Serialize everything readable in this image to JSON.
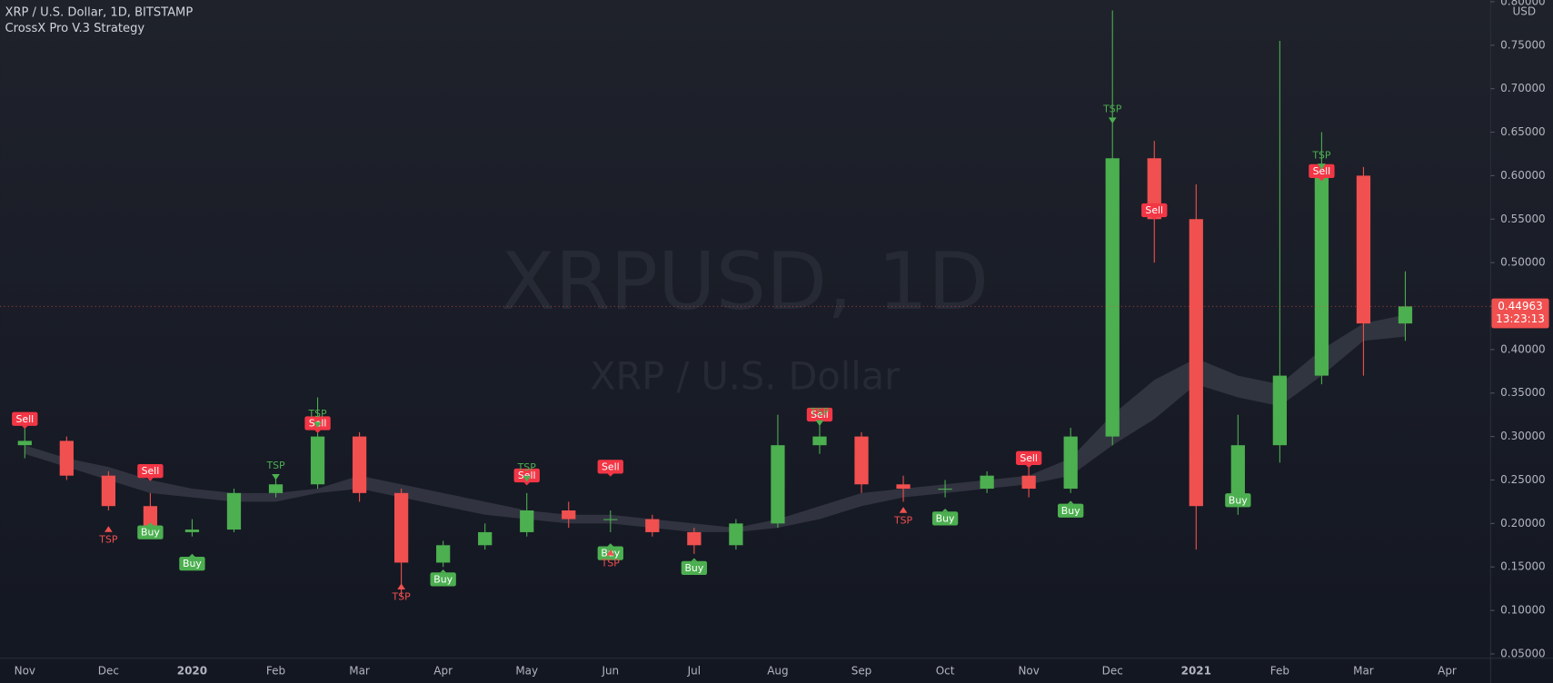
{
  "header": {
    "title": "XRP / U.S. Dollar, 1D, BITSTAMP",
    "indicator": "CrossX Pro V.3 Strategy",
    "watermark_symbol": "XRPUSD, 1D",
    "watermark_name": "XRP / U.S. Dollar",
    "currency": "USD",
    "countdown": "13:23:13"
  },
  "chart_data": {
    "type": "candlestick",
    "categories": [
      "Nov",
      null,
      "Dec",
      null,
      "2020",
      null,
      "Feb",
      null,
      "Mar",
      null,
      "Apr",
      null,
      "May",
      null,
      "Jun",
      null,
      "Jul",
      null,
      "Aug",
      null,
      "Sep",
      null,
      "Oct",
      null,
      "Nov",
      null,
      "Dec",
      null,
      "2021",
      null,
      "Feb",
      null,
      "Mar",
      null,
      "Apr"
    ],
    "open": [
      0.29,
      0.295,
      0.255,
      0.22,
      0.19,
      0.193,
      0.235,
      0.245,
      0.3,
      0.235,
      0.155,
      0.175,
      0.19,
      0.215,
      0.205,
      0.205,
      0.19,
      0.175,
      0.2,
      0.29,
      0.3,
      0.245,
      0.24,
      0.24,
      0.255,
      0.24,
      0.3,
      0.62,
      0.55,
      0.22,
      0.29,
      0.37,
      0.6,
      0.43,
      null
    ],
    "high": [
      0.315,
      0.3,
      0.26,
      0.235,
      0.205,
      0.24,
      0.255,
      0.345,
      0.305,
      0.24,
      0.18,
      0.2,
      0.235,
      0.225,
      0.215,
      0.21,
      0.195,
      0.205,
      0.325,
      0.32,
      0.305,
      0.255,
      0.25,
      0.26,
      0.265,
      0.31,
      0.79,
      0.64,
      0.59,
      0.325,
      0.755,
      0.65,
      0.61,
      0.49,
      null
    ],
    "low": [
      0.275,
      0.25,
      0.215,
      0.185,
      0.185,
      0.19,
      0.23,
      0.24,
      0.225,
      0.115,
      0.15,
      0.17,
      0.185,
      0.195,
      0.19,
      0.185,
      0.165,
      0.17,
      0.195,
      0.28,
      0.235,
      0.225,
      0.23,
      0.235,
      0.23,
      0.235,
      0.29,
      0.5,
      0.17,
      0.21,
      0.27,
      0.36,
      0.37,
      0.41,
      null
    ],
    "close": [
      0.295,
      0.255,
      0.22,
      0.19,
      0.193,
      0.235,
      0.245,
      0.3,
      0.235,
      0.155,
      0.175,
      0.19,
      0.215,
      0.205,
      0.205,
      0.19,
      0.175,
      0.2,
      0.29,
      0.3,
      0.245,
      0.24,
      0.24,
      0.255,
      0.24,
      0.3,
      0.62,
      0.55,
      0.22,
      0.29,
      0.37,
      0.6,
      0.43,
      0.44963,
      null
    ],
    "up_color": "#4caf50",
    "down_color": "#f0504f",
    "band": {
      "color": "#363a45",
      "upper": [
        0.29,
        0.275,
        0.265,
        0.25,
        0.24,
        0.235,
        0.235,
        0.24,
        0.255,
        0.245,
        0.235,
        0.225,
        0.215,
        0.21,
        0.21,
        0.205,
        0.2,
        0.195,
        0.205,
        0.22,
        0.235,
        0.24,
        0.245,
        0.25,
        0.255,
        0.275,
        0.325,
        0.365,
        0.39,
        0.37,
        0.36,
        0.4,
        0.43,
        0.44,
        null
      ],
      "lower": [
        0.28,
        0.265,
        0.25,
        0.235,
        0.23,
        0.225,
        0.225,
        0.235,
        0.24,
        0.23,
        0.22,
        0.21,
        0.205,
        0.2,
        0.2,
        0.195,
        0.19,
        0.19,
        0.195,
        0.205,
        0.22,
        0.23,
        0.235,
        0.24,
        0.245,
        0.255,
        0.29,
        0.32,
        0.36,
        0.345,
        0.335,
        0.37,
        0.41,
        0.415,
        null
      ]
    },
    "signals": [
      {
        "label": "Sell",
        "style": "box-above",
        "color": "#f23645",
        "values": [
          0.31,
          null,
          null,
          0.25,
          null,
          null,
          null,
          0.305,
          null,
          null,
          null,
          null,
          0.245,
          null,
          0.255,
          null,
          null,
          null,
          null,
          0.315,
          null,
          null,
          null,
          null,
          0.265,
          null,
          null,
          0.55,
          null,
          null,
          null,
          0.595,
          null,
          null,
          null
        ]
      },
      {
        "label": "Buy",
        "style": "box-below",
        "color": "#4caf50",
        "values": [
          null,
          null,
          null,
          0.2,
          0.164,
          null,
          null,
          null,
          null,
          null,
          0.146,
          null,
          null,
          null,
          0.176,
          null,
          0.159,
          null,
          null,
          null,
          null,
          null,
          0.216,
          null,
          null,
          0.225,
          null,
          null,
          null,
          0.237,
          null,
          null,
          null,
          null,
          null
        ]
      },
      {
        "label": "TSP",
        "style": "arrow-down",
        "color": "#4caf50",
        "values": [
          null,
          null,
          null,
          null,
          null,
          null,
          0.25,
          0.31,
          null,
          null,
          null,
          null,
          0.248,
          null,
          null,
          null,
          null,
          null,
          null,
          0.312,
          null,
          null,
          null,
          null,
          null,
          null,
          0.66,
          null,
          null,
          null,
          null,
          0.607,
          null,
          null,
          null
        ]
      },
      {
        "label": "TSP",
        "style": "arrow-up",
        "color": "#f0504f",
        "values": [
          null,
          null,
          0.197,
          null,
          null,
          null,
          null,
          null,
          null,
          0.131,
          null,
          null,
          null,
          null,
          0.17,
          null,
          null,
          null,
          null,
          null,
          null,
          0.219,
          null,
          null,
          null,
          null,
          null,
          null,
          null,
          null,
          null,
          null,
          null,
          null,
          null
        ]
      }
    ],
    "last_price": 0.44963,
    "ylim": [
      0.045,
      0.802
    ],
    "yticks": [
      {
        "value": 0.05,
        "label": "0.05000"
      },
      {
        "value": 0.1,
        "label": "0.10000"
      },
      {
        "value": 0.15,
        "label": "0.15000"
      },
      {
        "value": 0.2,
        "label": "0.20000"
      },
      {
        "value": 0.25,
        "label": "0.25000"
      },
      {
        "value": 0.3,
        "label": "0.30000"
      },
      {
        "value": 0.35,
        "label": "0.35000"
      },
      {
        "value": 0.4,
        "label": "0.40000"
      },
      {
        "value": 0.45,
        "label": "0.45000"
      },
      {
        "value": 0.5,
        "label": "0.50000"
      },
      {
        "value": 0.55,
        "label": "0.55000"
      },
      {
        "value": 0.6,
        "label": "0.60000"
      },
      {
        "value": 0.65,
        "label": "0.65000"
      },
      {
        "value": 0.7,
        "label": "0.70000"
      },
      {
        "value": 0.75,
        "label": "0.75000"
      },
      {
        "value": 0.8,
        "label": "0.80000"
      }
    ]
  }
}
